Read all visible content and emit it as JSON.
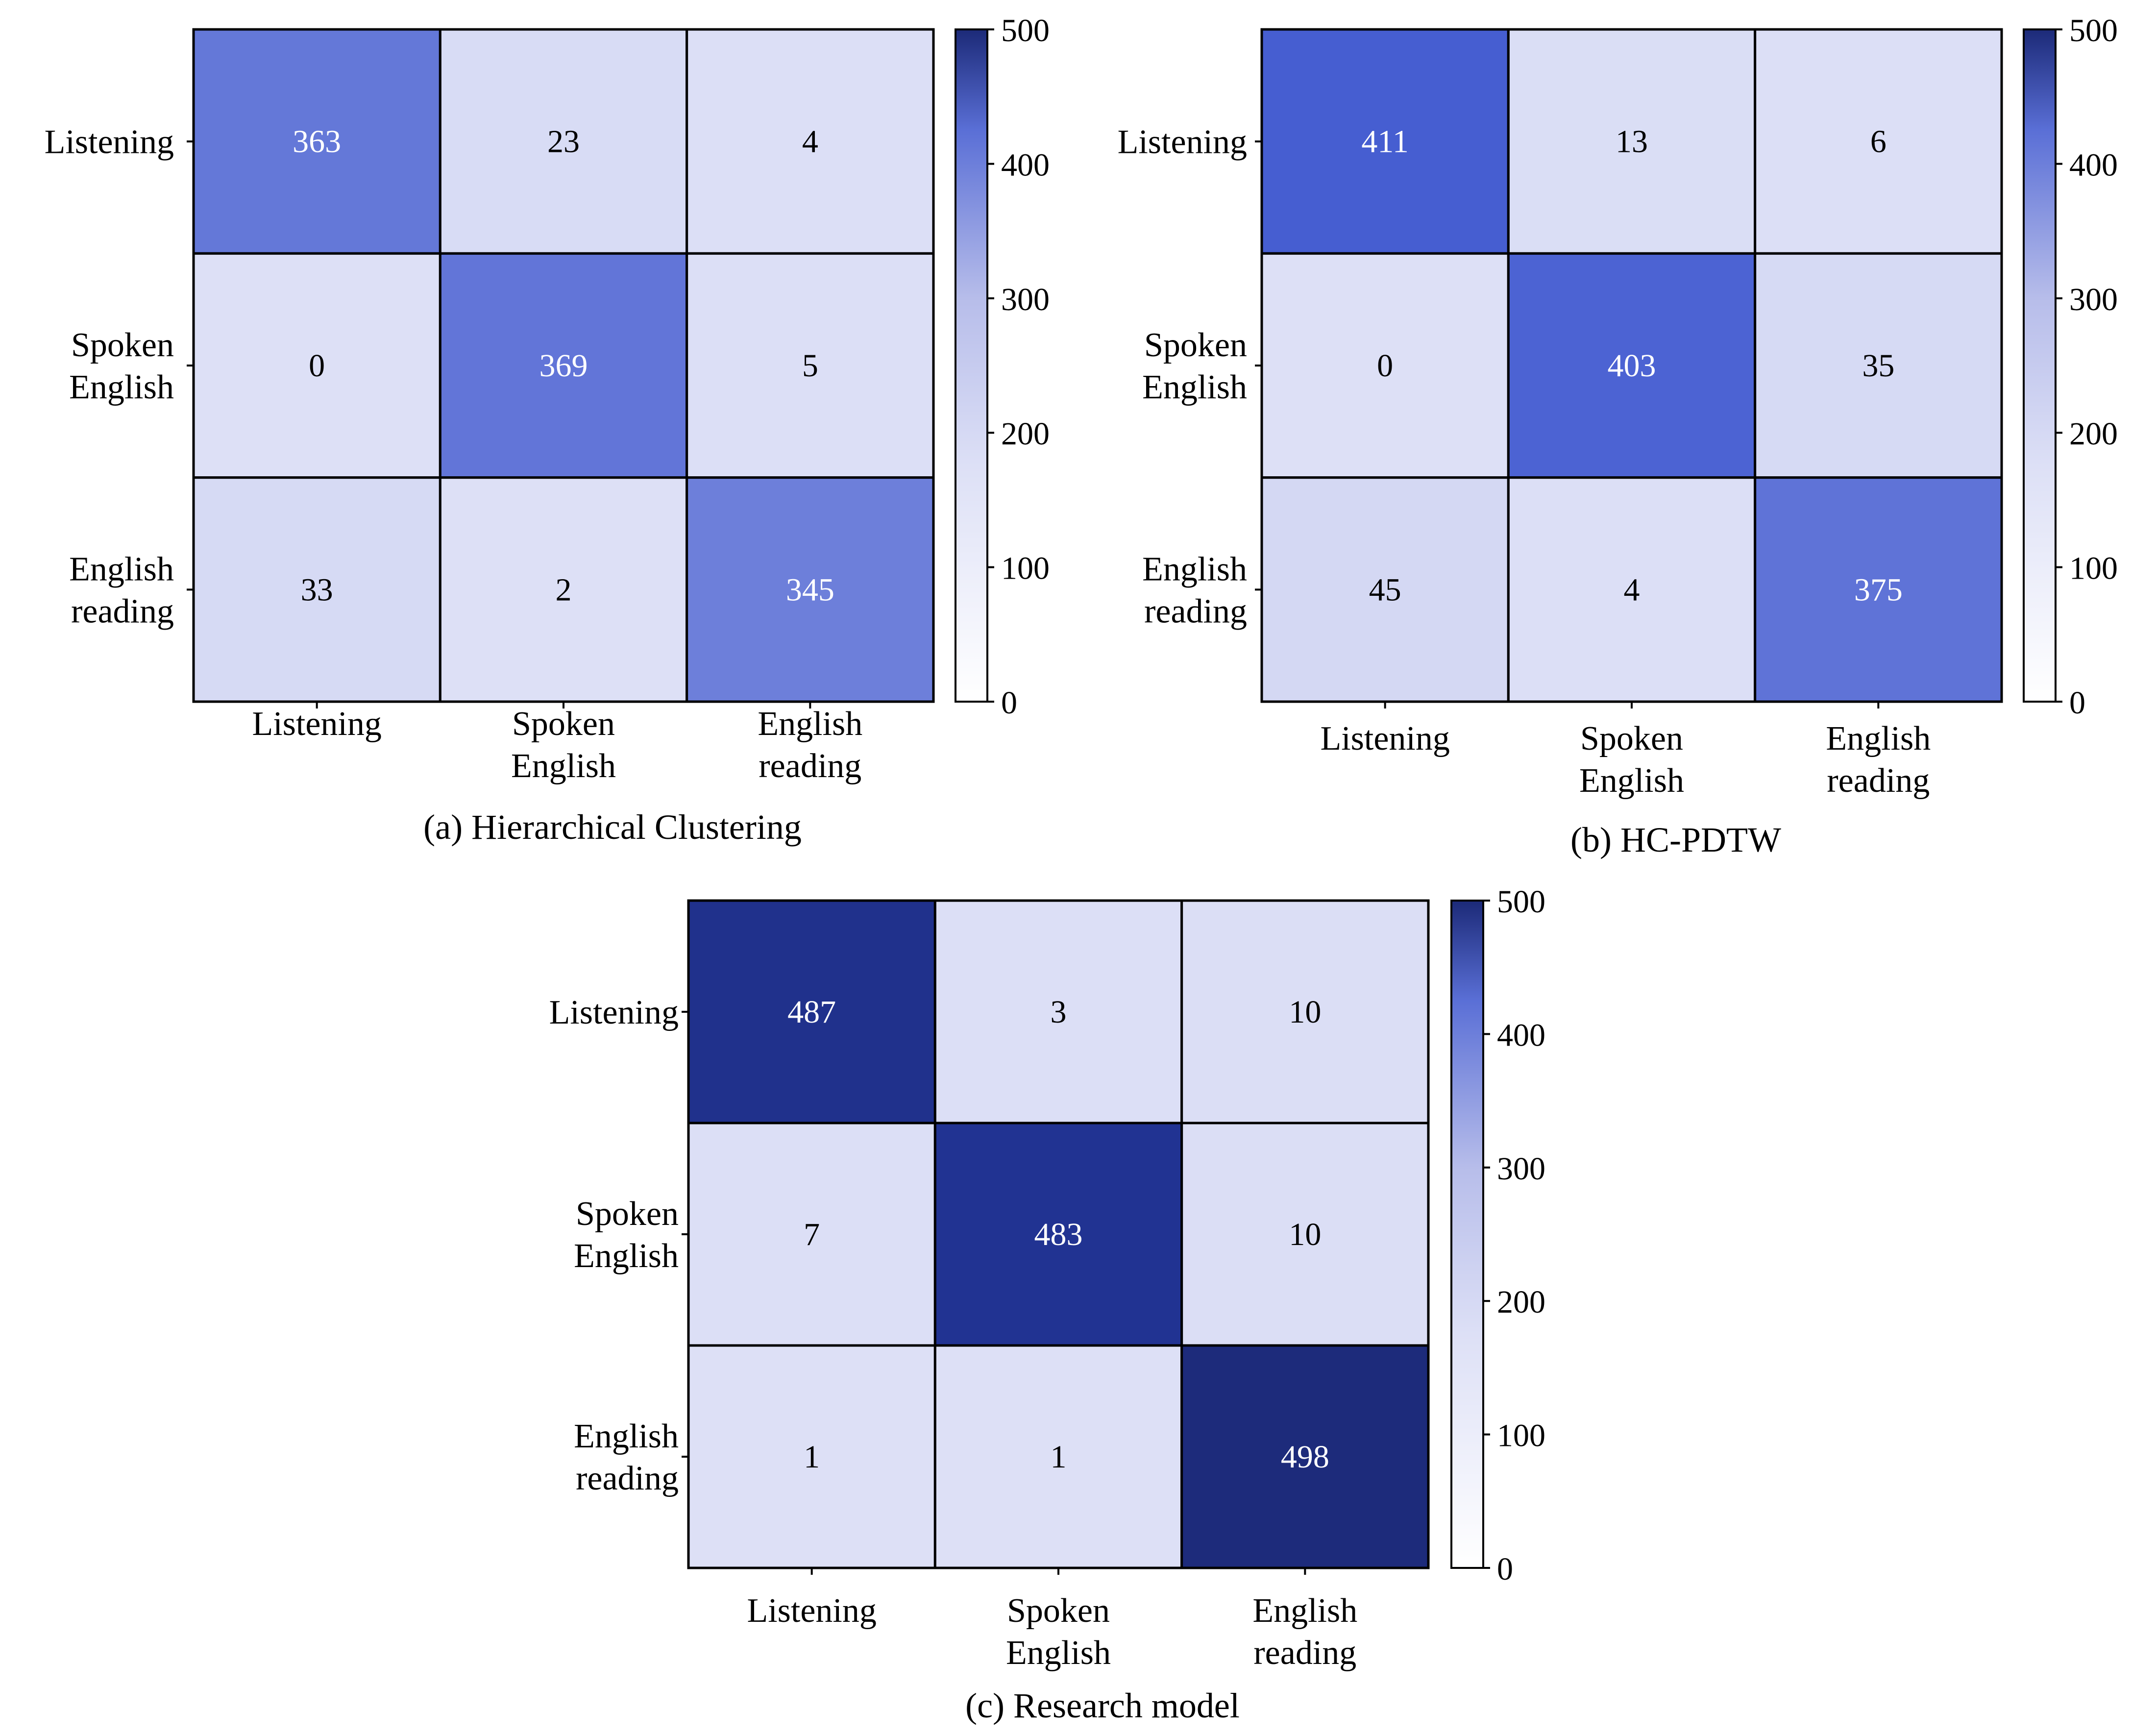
{
  "colors": {
    "scale_low": "#ffffff",
    "scale_mid": "#dde0f6",
    "scale_mid2": "#b7bdea",
    "scale_high": "#2b47cb",
    "scale_top": "#1c2a78",
    "border": "#000000",
    "text_on_light": "#000000",
    "text_on_dark": "#ffffff"
  },
  "chart_data": [
    {
      "type": "heatmap",
      "title": "(a) Hierarchical Clustering",
      "row_labels": [
        "Listening",
        "Spoken English",
        "English reading"
      ],
      "col_labels": [
        "Listening",
        "Spoken English",
        "English reading"
      ],
      "values": [
        [
          363,
          23,
          4
        ],
        [
          0,
          369,
          5
        ],
        [
          33,
          2,
          345
        ]
      ],
      "colorbar": {
        "range": [
          0,
          500
        ],
        "ticks": [
          0,
          100,
          200,
          300,
          400,
          500
        ]
      }
    },
    {
      "type": "heatmap",
      "title": "(b) HC-PDTW",
      "row_labels": [
        "Listening",
        "Spoken English",
        "English reading"
      ],
      "col_labels": [
        "Listening",
        "Spoken English",
        "English reading"
      ],
      "values": [
        [
          411,
          13,
          6
        ],
        [
          0,
          403,
          35
        ],
        [
          45,
          4,
          375
        ]
      ],
      "colorbar": {
        "range": [
          0,
          500
        ],
        "ticks": [
          0,
          100,
          200,
          300,
          400,
          500
        ]
      }
    },
    {
      "type": "heatmap",
      "title": "(c) Research model",
      "row_labels": [
        "Listening",
        "Spoken English",
        "English reading"
      ],
      "col_labels": [
        "Listening",
        "Spoken English",
        "English reading"
      ],
      "values": [
        [
          487,
          3,
          10
        ],
        [
          7,
          483,
          10
        ],
        [
          1,
          1,
          498
        ]
      ],
      "colorbar": {
        "range": [
          0,
          500
        ],
        "ticks": [
          0,
          100,
          200,
          300,
          400,
          500
        ]
      }
    }
  ]
}
